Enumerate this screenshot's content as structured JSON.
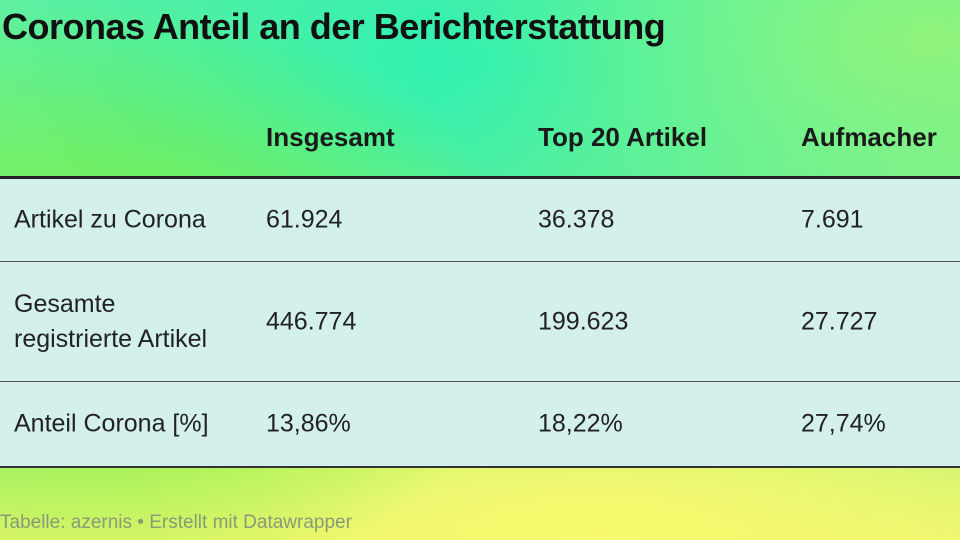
{
  "title": "Coronas Anteil an der Berichterstattung",
  "chart_data": {
    "type": "table",
    "columns": [
      "",
      "Insgesamt",
      "Top 20 Artikel",
      "Aufmacher"
    ],
    "rows": [
      {
        "label": "Artikel zu Corona",
        "values": [
          "61.924",
          "36.378",
          "7.691"
        ]
      },
      {
        "label": "Gesamte registrierte Artikel",
        "values": [
          "446.774",
          "199.623",
          "27.727"
        ]
      },
      {
        "label": "Anteil Corona [%]",
        "values": [
          "13,86%",
          "18,22%",
          "27,74%"
        ]
      }
    ]
  },
  "footer": "Tabelle: azernis • Erstellt mit Datawrapper"
}
